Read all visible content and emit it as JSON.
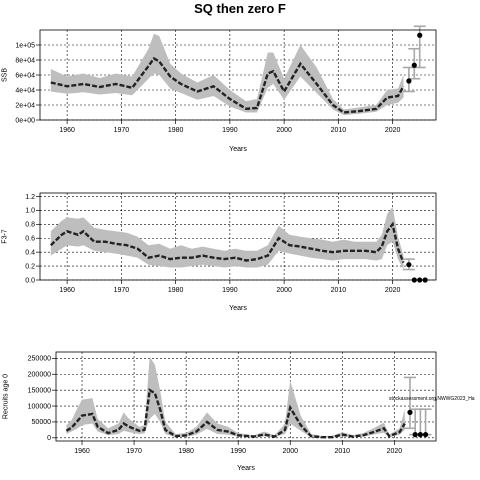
{
  "title": "SQ then zero F",
  "chart_data": [
    {
      "type": "line",
      "xlabel": "Years",
      "ylabel": "SSB",
      "xlim": [
        1955,
        2028
      ],
      "ylim": [
        0,
        120000
      ],
      "xticks": [
        "1960",
        "1970",
        "1980",
        "1990",
        "2000",
        "2010",
        "2020"
      ],
      "yticks": [
        "0e+00",
        "2e+04",
        "4e+04",
        "6e+04",
        "8e+04",
        "1e+05"
      ],
      "grid": true,
      "band": {
        "x": [
          1957,
          1960,
          1963,
          1966,
          1969,
          1972,
          1975,
          1976,
          1977,
          1979,
          1981,
          1984,
          1987,
          1990,
          1993,
          1995,
          1997,
          1998,
          2000,
          2003,
          2006,
          2009,
          2011,
          2014,
          2017,
          2019,
          2021,
          2022
        ],
        "lower": [
          38000,
          35000,
          37000,
          34000,
          36000,
          33000,
          55000,
          62000,
          60000,
          42000,
          36000,
          27000,
          32000,
          18000,
          10000,
          10000,
          43000,
          48000,
          27000,
          58000,
          36000,
          14000,
          6500,
          8500,
          11000,
          20000,
          23000,
          30000
        ],
        "upper": [
          68000,
          58000,
          62000,
          56000,
          62000,
          58000,
          95000,
          115000,
          112000,
          75000,
          62000,
          50000,
          60000,
          40000,
          25000,
          28000,
          90000,
          90000,
          55000,
          100000,
          70000,
          28000,
          14000,
          17000,
          20000,
          40000,
          42000,
          60000
        ]
      },
      "series": [
        {
          "style": "dashed-thick",
          "x": [
            1957,
            1960,
            1963,
            1966,
            1969,
            1972,
            1975,
            1976,
            1977,
            1979,
            1981,
            1984,
            1987,
            1990,
            1993,
            1995,
            1997,
            1998,
            2000,
            2003,
            2006,
            2009,
            2011,
            2014,
            2017,
            2019,
            2021,
            2022
          ],
          "values": [
            50000,
            45000,
            48000,
            44000,
            48000,
            43000,
            72000,
            82000,
            78000,
            58000,
            48000,
            38000,
            45000,
            28000,
            15000,
            16000,
            62000,
            65000,
            38000,
            75000,
            48000,
            20000,
            10000,
            12000,
            15000,
            30000,
            32000,
            45000
          ]
        }
      ],
      "projection": {
        "x": [
          2023,
          2024,
          2025
        ],
        "values": [
          52000,
          73000,
          113000
        ],
        "lower": [
          38000,
          55000,
          70000
        ],
        "upper": [
          70000,
          95000,
          125000
        ]
      }
    },
    {
      "type": "line",
      "xlabel": "Years",
      "ylabel": "F3-7",
      "xlim": [
        1955,
        2028
      ],
      "ylim": [
        0,
        1.25
      ],
      "xticks": [
        "1960",
        "1970",
        "1980",
        "1990",
        "2000",
        "2010",
        "2020"
      ],
      "yticks": [
        "0.0",
        "0.2",
        "0.4",
        "0.6",
        "0.8",
        "1.0",
        "1.2"
      ],
      "grid": true,
      "band": {
        "x": [
          1957,
          1959,
          1960,
          1962,
          1963,
          1965,
          1967,
          1969,
          1971,
          1973,
          1975,
          1977,
          1979,
          1981,
          1983,
          1985,
          1987,
          1989,
          1991,
          1993,
          1995,
          1997,
          1999,
          2001,
          2003,
          2005,
          2007,
          2009,
          2011,
          2013,
          2015,
          2017,
          2018,
          2019,
          2020,
          2021,
          2022
        ],
        "lower": [
          0.35,
          0.45,
          0.5,
          0.48,
          0.5,
          0.42,
          0.4,
          0.38,
          0.35,
          0.32,
          0.22,
          0.2,
          0.18,
          0.18,
          0.2,
          0.22,
          0.2,
          0.18,
          0.2,
          0.18,
          0.18,
          0.22,
          0.42,
          0.38,
          0.35,
          0.32,
          0.3,
          0.28,
          0.3,
          0.3,
          0.3,
          0.28,
          0.3,
          0.5,
          0.55,
          0.3,
          0.15
        ],
        "upper": [
          0.7,
          0.85,
          0.9,
          0.88,
          0.9,
          0.75,
          0.72,
          0.7,
          0.68,
          0.62,
          0.5,
          0.52,
          0.45,
          0.5,
          0.45,
          0.48,
          0.45,
          0.42,
          0.45,
          0.42,
          0.42,
          0.5,
          0.78,
          0.65,
          0.62,
          0.6,
          0.58,
          0.55,
          0.58,
          0.55,
          0.55,
          0.55,
          0.65,
          0.95,
          1.05,
          0.62,
          0.35
        ]
      },
      "series": [
        {
          "style": "dashed-thick",
          "x": [
            1957,
            1959,
            1960,
            1962,
            1963,
            1965,
            1967,
            1969,
            1971,
            1973,
            1975,
            1977,
            1979,
            1981,
            1983,
            1985,
            1987,
            1989,
            1991,
            1993,
            1995,
            1997,
            1999,
            2001,
            2003,
            2005,
            2007,
            2009,
            2011,
            2013,
            2015,
            2017,
            2018,
            2019,
            2020,
            2021,
            2022
          ],
          "values": [
            0.5,
            0.65,
            0.7,
            0.65,
            0.7,
            0.55,
            0.55,
            0.52,
            0.5,
            0.45,
            0.32,
            0.35,
            0.3,
            0.32,
            0.32,
            0.35,
            0.32,
            0.3,
            0.32,
            0.28,
            0.3,
            0.35,
            0.6,
            0.5,
            0.48,
            0.45,
            0.42,
            0.4,
            0.42,
            0.42,
            0.42,
            0.4,
            0.48,
            0.7,
            0.8,
            0.45,
            0.25
          ]
        }
      ],
      "projection": {
        "x": [
          2023,
          2024,
          2025,
          2026
        ],
        "values": [
          0.22,
          0.0,
          0.0,
          0.0
        ],
        "lower": [
          0.15,
          0.0,
          0.0,
          0.0
        ],
        "upper": [
          0.3,
          0.0,
          0.0,
          0.0
        ]
      }
    },
    {
      "type": "line",
      "xlabel": "Years",
      "ylabel": "Recruits age 0",
      "xlim": [
        1955,
        2028
      ],
      "ylim": [
        -10000,
        270000
      ],
      "xticks": [
        "1960",
        "1970",
        "1980",
        "1990",
        "2000",
        "2010",
        "2020"
      ],
      "yticks": [
        "0",
        "50000",
        "100000",
        "150000",
        "200000",
        "250000"
      ],
      "grid": true,
      "annotation": "stockassessment.org,NWWG2023_Ha",
      "band": {
        "x": [
          1957,
          1958,
          1959,
          1960,
          1962,
          1963,
          1965,
          1967,
          1968,
          1969,
          1971,
          1972,
          1973,
          1974,
          1975,
          1976,
          1978,
          1980,
          1982,
          1984,
          1986,
          1988,
          1990,
          1993,
          1995,
          1997,
          1999,
          2000,
          2002,
          2004,
          2006,
          2008,
          2010,
          2012,
          2014,
          2016,
          2018,
          2019,
          2021,
          2022
        ],
        "lower": [
          12000,
          20000,
          28000,
          40000,
          45000,
          20000,
          8000,
          12000,
          22000,
          18000,
          12000,
          14000,
          60000,
          75000,
          50000,
          12000,
          2000,
          3000,
          10000,
          28000,
          12000,
          10000,
          4000,
          2000,
          5000,
          2000,
          12000,
          45000,
          22000,
          2000,
          1000,
          1000,
          5000,
          2000,
          4000,
          10000,
          16000,
          2000,
          10000,
          25000
        ],
        "upper": [
          40000,
          55000,
          90000,
          120000,
          125000,
          60000,
          30000,
          45000,
          80000,
          60000,
          35000,
          40000,
          255000,
          230000,
          150000,
          50000,
          12000,
          15000,
          35000,
          80000,
          45000,
          35000,
          15000,
          8000,
          20000,
          8000,
          45000,
          180000,
          70000,
          12000,
          6000,
          6000,
          18000,
          8000,
          15000,
          30000,
          48000,
          10000,
          30000,
          90000
        ]
      },
      "series": [
        {
          "style": "dashed-thick",
          "x": [
            1957,
            1958,
            1959,
            1960,
            1962,
            1963,
            1965,
            1967,
            1968,
            1969,
            1971,
            1972,
            1973,
            1974,
            1975,
            1976,
            1978,
            1980,
            1982,
            1984,
            1986,
            1988,
            1990,
            1993,
            1995,
            1997,
            1999,
            2000,
            2002,
            2004,
            2006,
            2008,
            2010,
            2012,
            2014,
            2016,
            2018,
            2019,
            2021,
            2022
          ],
          "values": [
            22000,
            32000,
            50000,
            70000,
            75000,
            35000,
            15000,
            25000,
            45000,
            35000,
            22000,
            25000,
            150000,
            140000,
            90000,
            25000,
            5000,
            8000,
            20000,
            50000,
            25000,
            20000,
            8000,
            4000,
            10000,
            4000,
            25000,
            95000,
            40000,
            5000,
            2000,
            2000,
            10000,
            4000,
            8000,
            18000,
            30000,
            5000,
            18000,
            45000
          ]
        }
      ],
      "projection": {
        "x": [
          2023,
          2024,
          2025,
          2026
        ],
        "values": [
          80000,
          10000,
          10000,
          10000
        ],
        "lower": [
          30000,
          10000,
          10000,
          10000
        ],
        "upper": [
          190000,
          90000,
          90000,
          90000
        ]
      }
    }
  ]
}
